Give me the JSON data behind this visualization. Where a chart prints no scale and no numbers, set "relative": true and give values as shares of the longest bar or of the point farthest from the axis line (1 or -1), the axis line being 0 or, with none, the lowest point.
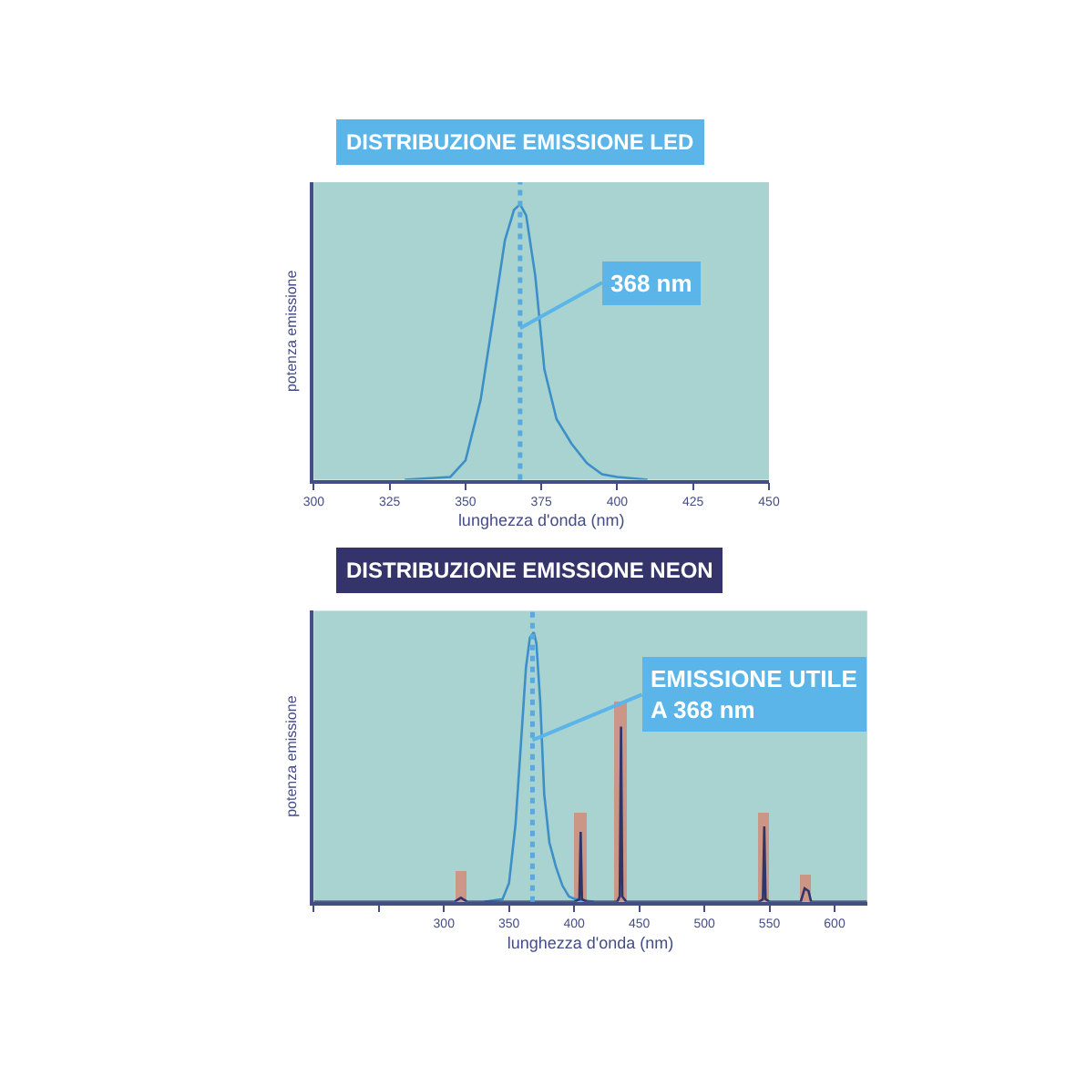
{
  "chart_data": [
    {
      "type": "line",
      "title": "DISTRIBUZIONE EMISSIONE LED",
      "xlabel": "lunghezza d'onda (nm)",
      "ylabel": "potenza emissione",
      "relative": true,
      "xlim": [
        300,
        450
      ],
      "xticks": [
        300,
        325,
        350,
        375,
        400,
        425,
        450
      ],
      "grid": false,
      "marker": "none",
      "line_style": "solid",
      "series": [
        {
          "color": "#3d8fc8",
          "x": [
            330,
            345,
            350,
            355,
            360,
            363,
            366,
            368,
            370,
            373,
            376,
            380,
            385,
            390,
            395,
            400,
            410
          ],
          "values": [
            0,
            0.01,
            0.07,
            0.29,
            0.65,
            0.87,
            0.98,
            1,
            0.96,
            0.74,
            0.4,
            0.22,
            0.13,
            0.06,
            0.02,
            0.01,
            0
          ]
        }
      ],
      "ref_lines": [
        {
          "axis": "x",
          "value": 368,
          "color": "#5aa9dc",
          "line_style": "dotted"
        }
      ],
      "annotations": [
        {
          "text": "368 nm",
          "x": 368,
          "y": 0.55
        }
      ]
    },
    {
      "type": "line",
      "title": "DISTRIBUZIONE EMISSIONE NEON",
      "xlabel": "lunghezza d'onda (nm)",
      "ylabel": "potenza emissione",
      "relative": true,
      "xlim": [
        200,
        625
      ],
      "xticks": [
        {
          "value": 200,
          "label": null
        },
        {
          "value": 250,
          "label": null
        },
        300,
        350,
        400,
        450,
        500,
        550,
        600
      ],
      "grid": false,
      "marker": "none",
      "line_style": "solid",
      "series": [
        {
          "type": "bar",
          "color": "#d9826f",
          "x": [
            313,
            405,
            436,
            546,
            578
          ],
          "values": [
            0.11,
            0.33,
            0.74,
            0.33,
            0.1
          ]
        },
        {
          "color": "#3d8fc8",
          "x": [
            331,
            345,
            350,
            355,
            360,
            363,
            366,
            369,
            371,
            374,
            377,
            381,
            386,
            391,
            396,
            401,
            415
          ],
          "values": [
            0,
            0.01,
            0.07,
            0.29,
            0.65,
            0.87,
            0.98,
            1,
            0.96,
            0.74,
            0.4,
            0.22,
            0.13,
            0.06,
            0.02,
            0.01,
            0
          ]
        },
        {
          "color": "#2f3566",
          "x": [
            200,
            308,
            313,
            318,
            400,
            404,
            405,
            406,
            410,
            433,
            435,
            436,
            437,
            440,
            542,
            545,
            546,
            547,
            550,
            574,
            577,
            580,
            582,
            625
          ],
          "values": [
            0,
            0,
            0.015,
            0,
            0,
            0.01,
            0.26,
            0.01,
            0,
            0,
            0.02,
            0.65,
            0.02,
            0,
            0,
            0.01,
            0.28,
            0.01,
            0,
            0,
            0.05,
            0.04,
            0,
            0
          ]
        }
      ],
      "ref_lines": [
        {
          "axis": "x",
          "value": 368,
          "color": "#5aa9dc",
          "line_style": "dotted"
        }
      ],
      "annotations": [
        {
          "text": "EMISSIONE UTILE\nA 368 nm",
          "x": 368,
          "y": 0.6
        }
      ]
    }
  ]
}
